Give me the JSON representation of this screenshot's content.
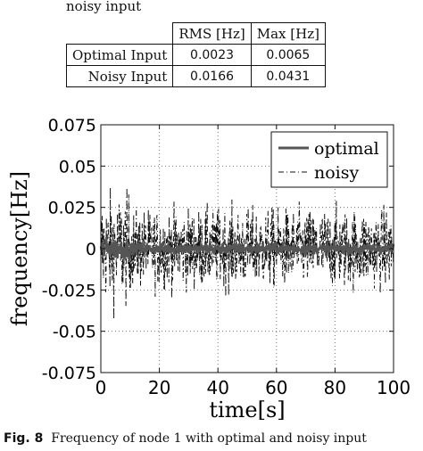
{
  "top_caption": "noisy input",
  "table": {
    "headers": [
      "",
      "RMS [Hz]",
      "Max [Hz]"
    ],
    "rows": [
      {
        "label": "Optimal Input",
        "rms": "0.0023",
        "max": "0.0065"
      },
      {
        "label": "Noisy Input",
        "rms": "0.0166",
        "max": "0.0431"
      }
    ]
  },
  "figure_caption": {
    "label": "Fig. 8",
    "text": "Frequency of node 1 with optimal and noisy input"
  },
  "chart_data": {
    "type": "line",
    "xlabel": "time[s]",
    "ylabel": "frequency[Hz]",
    "xlim": [
      0,
      100
    ],
    "ylim": [
      -0.075,
      0.075
    ],
    "x_ticks": [
      0,
      20,
      40,
      60,
      80,
      100
    ],
    "y_ticks": [
      0.075,
      0.05,
      0.025,
      0,
      -0.025,
      -0.05,
      -0.075
    ],
    "y_tick_labels": [
      "0.075",
      "0.05",
      "0.025",
      "0",
      "-0.025",
      "-0.05",
      "-0.075"
    ],
    "x_tick_labels": [
      "0",
      "20",
      "40",
      "60",
      "80",
      "100"
    ],
    "grid": true,
    "legend_position": "top-right",
    "series": [
      {
        "name": "optimal",
        "color": "#555555",
        "style": "solid",
        "rms": 0.0023,
        "max": 0.0065
      },
      {
        "name": "noisy",
        "color": "#111111",
        "style": "dash-dot",
        "rms": 0.0166,
        "max": 0.0431
      }
    ]
  }
}
